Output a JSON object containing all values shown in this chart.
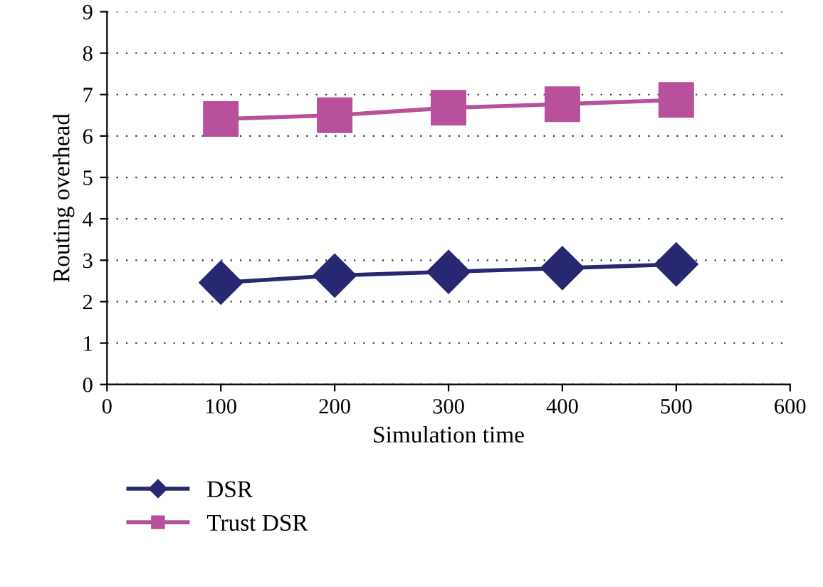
{
  "chart_data": {
    "type": "line",
    "xlabel": "Simulation time",
    "ylabel": "Routing overhead",
    "x": [
      100,
      200,
      300,
      400,
      500
    ],
    "series": [
      {
        "name": "DSR",
        "color": "#282872",
        "marker": "diamond",
        "values": [
          2.46,
          2.63,
          2.72,
          2.81,
          2.9
        ]
      },
      {
        "name": "Trust DSR",
        "color": "#b8509c",
        "marker": "square",
        "values": [
          6.41,
          6.5,
          6.68,
          6.77,
          6.87
        ]
      }
    ],
    "xlim": [
      0,
      600
    ],
    "xticks": [
      0,
      100,
      200,
      300,
      400,
      500,
      600
    ],
    "ylim": [
      0,
      9
    ],
    "yticks": [
      0,
      1,
      2,
      3,
      4,
      5,
      6,
      7,
      8,
      9
    ],
    "grid": "y",
    "legend": "bottom left",
    "line_style": "solid"
  }
}
